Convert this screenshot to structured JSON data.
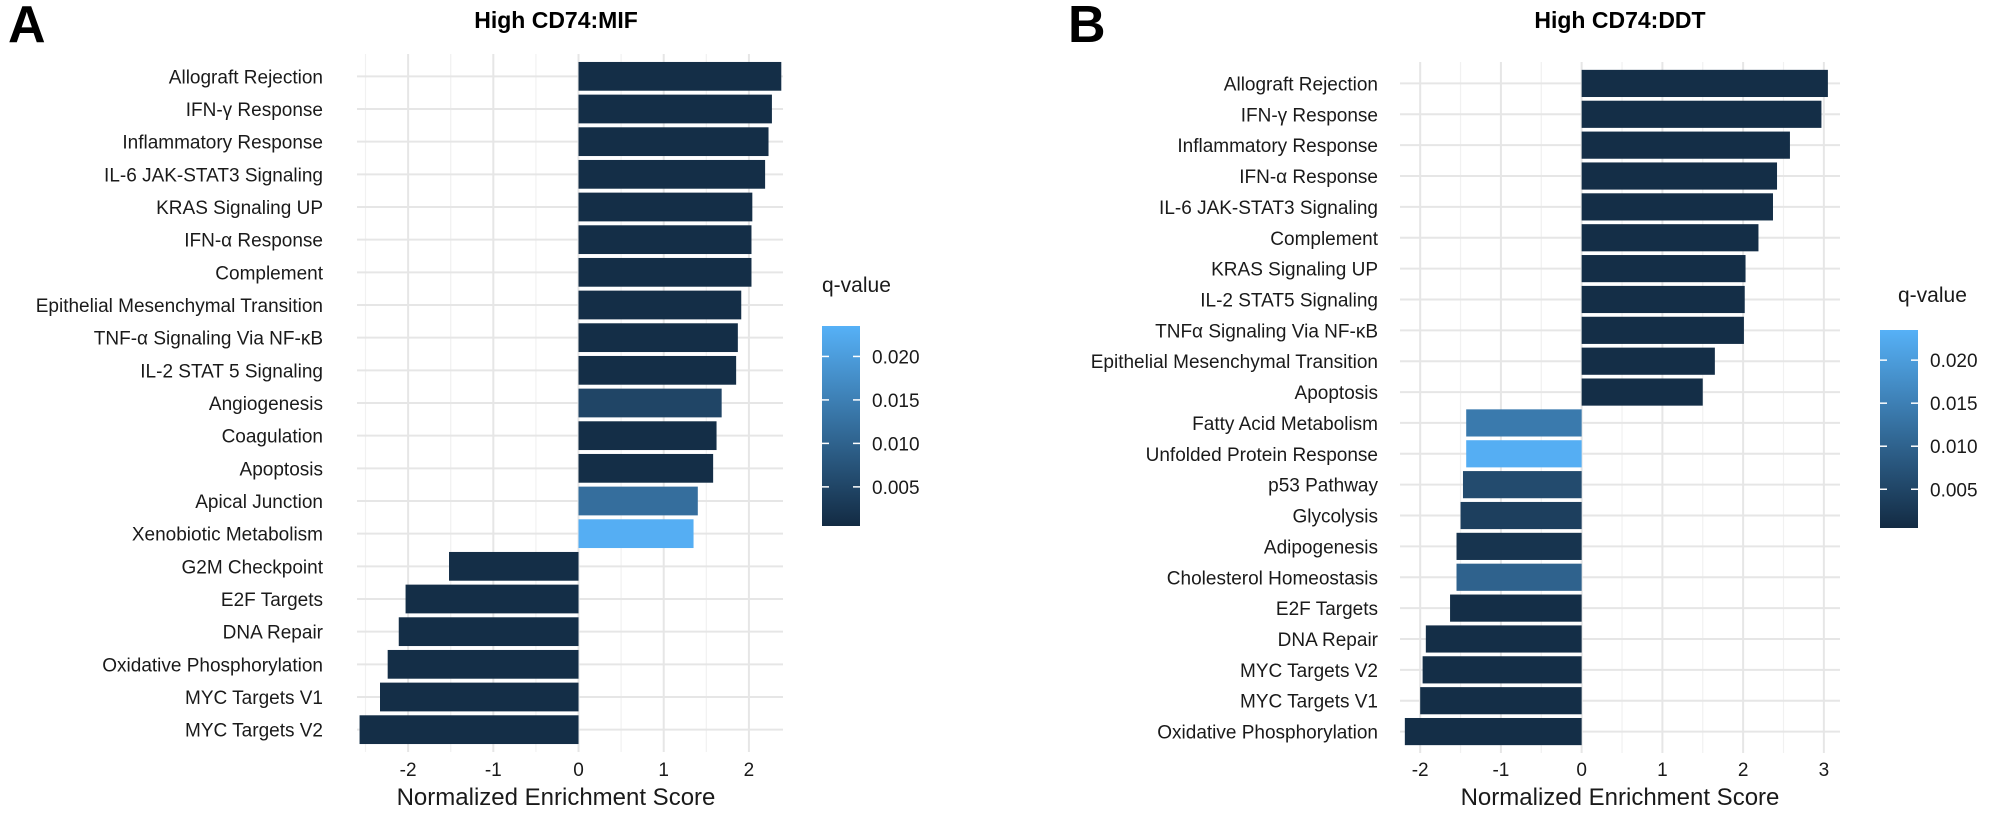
{
  "panels": [
    {
      "letter": "A"
    },
    {
      "letter": "B"
    }
  ],
  "legend": {
    "title": "q-value",
    "ticks": [
      "0.020",
      "0.015",
      "0.010",
      "0.005"
    ],
    "colors": {
      "low": "#132b43",
      "high": "#56b1f7"
    }
  },
  "chart_data": [
    {
      "type": "bar",
      "orientation": "horizontal",
      "title": "High CD74:MIF",
      "xlabel": "Normalized Enrichment Score",
      "ylabel": "",
      "xlim": [
        -2.6,
        2.4
      ],
      "xticks": [
        -2,
        -1,
        0,
        1,
        2
      ],
      "grid": true,
      "legend_position": "right",
      "categories": [
        "Allograft Rejection",
        "IFN-γ  Response",
        "Inflammatory Response",
        "IL-6 JAK-STAT3 Signaling",
        "KRAS Signaling UP",
        "IFN-α Response",
        "Complement",
        "Epithelial Mesenchymal Transition",
        "TNF-α Signaling Via NF-κB",
        "IL-2 STAT 5 Signaling",
        "Angiogenesis",
        "Coagulation",
        "Apoptosis",
        "Apical Junction",
        "Xenobiotic Metabolism",
        "G2M Checkpoint",
        "E2F Targets",
        "DNA Repair",
        "Oxidative Phosphorylation",
        "MYC Targets V1",
        "MYC Targets V2"
      ],
      "values": [
        2.38,
        2.27,
        2.23,
        2.19,
        2.04,
        2.03,
        2.03,
        1.91,
        1.87,
        1.85,
        1.68,
        1.62,
        1.58,
        1.4,
        1.35,
        -1.52,
        -2.03,
        -2.11,
        -2.24,
        -2.33,
        -2.57
      ],
      "q_values": [
        0.001,
        0.001,
        0.001,
        0.001,
        0.001,
        0.001,
        0.001,
        0.001,
        0.001,
        0.001,
        0.005,
        0.001,
        0.001,
        0.012,
        0.023,
        0.001,
        0.001,
        0.001,
        0.001,
        0.001,
        0.001
      ],
      "colorbar": {
        "min": 0.0005,
        "max": 0.0235
      }
    },
    {
      "type": "bar",
      "orientation": "horizontal",
      "title": "High CD74:DDT",
      "xlabel": "Normalized Enrichment Score",
      "ylabel": "",
      "xlim": [
        -2.25,
        3.2
      ],
      "xticks": [
        -2,
        -1,
        0,
        1,
        2,
        3
      ],
      "grid": true,
      "legend_position": "right",
      "categories": [
        "Allograft Rejection",
        "IFN-γ Response",
        "Inflammatory Response",
        "IFN-α Response",
        "IL-6 JAK-STAT3 Signaling",
        "Complement",
        "KRAS Signaling UP",
        "IL-2 STAT5 Signaling",
        "TNFα Signaling Via NF-κB",
        "Epithelial Mesenchymal Transition",
        "Apoptosis",
        "Fatty Acid Metabolism",
        "Unfolded Protein Response",
        "p53 Pathway",
        "Glycolysis",
        "Adipogenesis",
        "Cholesterol Homeostasis",
        "E2F Targets",
        "DNA Repair",
        "MYC Targets V2",
        "MYC Targets V1",
        "Oxidative Phosphorylation"
      ],
      "values": [
        3.05,
        2.97,
        2.58,
        2.42,
        2.37,
        2.19,
        2.03,
        2.02,
        2.01,
        1.65,
        1.5,
        -1.43,
        -1.43,
        -1.47,
        -1.5,
        -1.55,
        -1.55,
        -1.63,
        -1.93,
        -1.97,
        -2.0,
        -2.19
      ],
      "q_values": [
        0.001,
        0.001,
        0.001,
        0.001,
        0.001,
        0.001,
        0.001,
        0.001,
        0.001,
        0.001,
        0.001,
        0.014,
        0.023,
        0.006,
        0.004,
        0.002,
        0.01,
        0.001,
        0.001,
        0.001,
        0.001,
        0.001
      ],
      "colorbar": {
        "min": 0.0005,
        "max": 0.0235
      }
    }
  ]
}
